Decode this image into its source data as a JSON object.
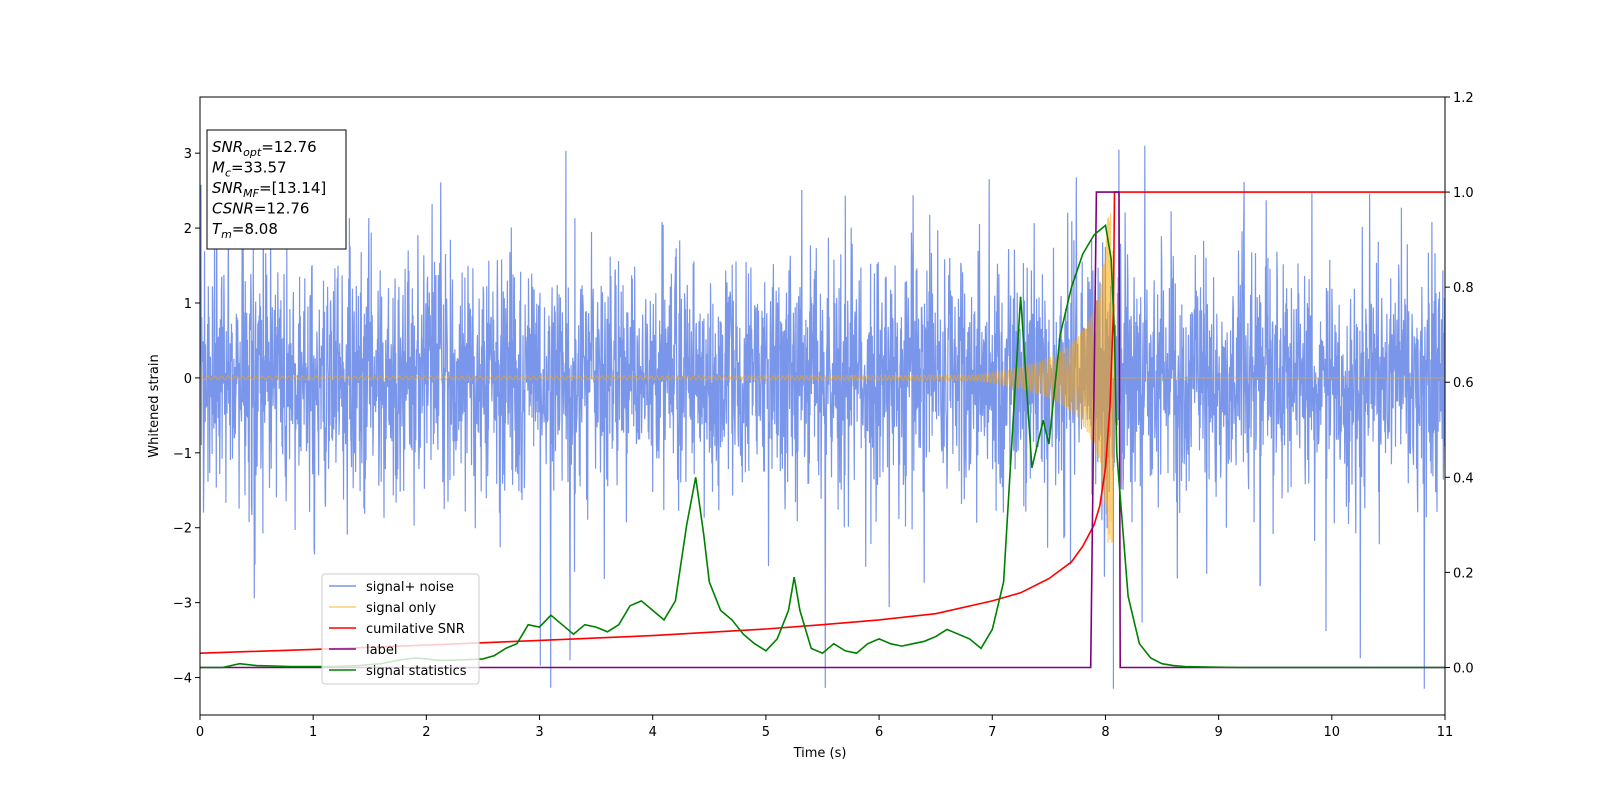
{
  "chart_data": {
    "type": "line",
    "xlabel": "Time (s)",
    "ylabel": "Whitened strain",
    "xlim": [
      0,
      11
    ],
    "ylim": [
      -4.5,
      3.75
    ],
    "y2lim": [
      -0.1,
      1.2
    ],
    "x_ticks": [
      0,
      1,
      2,
      3,
      4,
      5,
      6,
      7,
      8,
      9,
      10,
      11
    ],
    "y_ticks": [
      -4,
      -3,
      -2,
      -1,
      0,
      1,
      2,
      3
    ],
    "y_tick_labels": [
      "−4",
      "−3",
      "−2",
      "−1",
      "0",
      "1",
      "2",
      "3"
    ],
    "y2_ticks": [
      0.0,
      0.2,
      0.4,
      0.6,
      0.8,
      1.0,
      1.2
    ],
    "y2_tick_labels": [
      "0.0",
      "0.2",
      "0.4",
      "0.6",
      "0.8",
      "1.0",
      "1.2"
    ],
    "annotation": [
      {
        "main": "SNR",
        "sub": "opt",
        "rest": "=12.76"
      },
      {
        "main": "M",
        "sub": "c",
        "rest": "=33.57"
      },
      {
        "main": "SNR",
        "sub": "MF",
        "rest": "=[13.14]"
      },
      {
        "main": "CSNR",
        "sub": "",
        "rest": "=12.76"
      },
      {
        "main": "T",
        "sub": "m",
        "rest": "=8.08"
      }
    ],
    "legend_position": "lower-left",
    "series": [
      {
        "name": "signal+ noise",
        "color": "#4169e1",
        "axis": "left",
        "kind": "noisy_strain",
        "noise_amplitude_typical": 1.3,
        "noise_extremes": [
          -4.15,
          3.1
        ],
        "chirp_merger_time": 8.08
      },
      {
        "name": "signal only",
        "color": "#ffa500",
        "axis": "left",
        "kind": "chirp",
        "merger_time": 8.08,
        "peak_amplitude": 2.2,
        "base_amplitude": 0.02
      },
      {
        "name": "cumilative SNR",
        "color": "#ff0000",
        "axis": "right",
        "x": [
          0,
          1,
          2,
          3,
          4,
          5,
          5.5,
          6,
          6.5,
          7,
          7.25,
          7.5,
          7.7,
          7.8,
          7.9,
          7.95,
          8.0,
          8.04,
          8.07,
          8.08,
          9,
          10,
          11
        ],
        "y": [
          0.03,
          0.038,
          0.047,
          0.057,
          0.067,
          0.081,
          0.09,
          0.1,
          0.113,
          0.14,
          0.157,
          0.187,
          0.222,
          0.255,
          0.3,
          0.34,
          0.42,
          0.55,
          0.75,
          1.0,
          1.0,
          1.0,
          1.0
        ]
      },
      {
        "name": "label",
        "color": "#800080",
        "axis": "right",
        "x": [
          0,
          7.87,
          7.92,
          8.07,
          8.08,
          8.12,
          8.13,
          11
        ],
        "y": [
          0,
          0,
          1,
          1,
          1,
          1,
          0,
          0
        ]
      },
      {
        "name": "signal statistics",
        "color": "#008000",
        "axis": "right",
        "x": [
          0,
          0.2,
          0.35,
          0.5,
          0.8,
          1.0,
          1.2,
          1.4,
          1.6,
          1.75,
          1.9,
          2.0,
          2.1,
          2.2,
          2.4,
          2.5,
          2.6,
          2.7,
          2.8,
          2.85,
          2.9,
          3.0,
          3.1,
          3.2,
          3.3,
          3.4,
          3.5,
          3.6,
          3.7,
          3.8,
          3.9,
          4.0,
          4.1,
          4.2,
          4.3,
          4.38,
          4.45,
          4.5,
          4.6,
          4.7,
          4.8,
          4.9,
          5.0,
          5.1,
          5.2,
          5.25,
          5.3,
          5.4,
          5.5,
          5.6,
          5.7,
          5.8,
          5.9,
          6.0,
          6.1,
          6.2,
          6.3,
          6.4,
          6.5,
          6.6,
          6.7,
          6.8,
          6.9,
          7.0,
          7.1,
          7.18,
          7.25,
          7.35,
          7.45,
          7.5,
          7.6,
          7.7,
          7.8,
          7.9,
          8.0,
          8.05,
          8.08,
          8.1,
          8.2,
          8.3,
          8.4,
          8.5,
          8.6,
          8.7,
          8.9,
          9.2,
          11
        ],
        "y": [
          0.0,
          0.0,
          0.008,
          0.004,
          0.002,
          0.002,
          0.002,
          0.004,
          0.008,
          0.015,
          0.02,
          0.018,
          0.015,
          0.015,
          0.017,
          0.018,
          0.025,
          0.04,
          0.05,
          0.07,
          0.09,
          0.085,
          0.11,
          0.09,
          0.07,
          0.09,
          0.085,
          0.075,
          0.09,
          0.13,
          0.14,
          0.12,
          0.1,
          0.14,
          0.3,
          0.4,
          0.28,
          0.18,
          0.12,
          0.1,
          0.07,
          0.05,
          0.035,
          0.06,
          0.12,
          0.19,
          0.12,
          0.04,
          0.03,
          0.05,
          0.035,
          0.03,
          0.05,
          0.06,
          0.05,
          0.045,
          0.05,
          0.055,
          0.065,
          0.08,
          0.07,
          0.06,
          0.04,
          0.08,
          0.18,
          0.5,
          0.78,
          0.42,
          0.52,
          0.47,
          0.7,
          0.8,
          0.87,
          0.91,
          0.93,
          0.86,
          0.7,
          0.45,
          0.15,
          0.05,
          0.02,
          0.008,
          0.004,
          0.002,
          0.001,
          0.0,
          0.0
        ]
      }
    ]
  }
}
